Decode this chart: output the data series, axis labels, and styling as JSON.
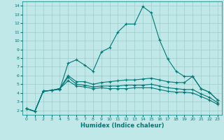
{
  "xlabel": "Humidex (Indice chaleur)",
  "bg_color": "#c0e8e8",
  "grid_color": "#a0cccc",
  "line_color": "#007878",
  "xlim": [
    -0.5,
    23.5
  ],
  "ylim": [
    1.5,
    14.5
  ],
  "xticks": [
    0,
    1,
    2,
    3,
    4,
    5,
    6,
    7,
    8,
    9,
    10,
    11,
    12,
    13,
    14,
    15,
    16,
    17,
    18,
    19,
    20,
    21,
    22,
    23
  ],
  "yticks": [
    2,
    3,
    4,
    5,
    6,
    7,
    8,
    9,
    10,
    11,
    12,
    13,
    14
  ],
  "lines": [
    [
      2.2,
      1.9,
      4.2,
      4.3,
      4.4,
      7.4,
      7.8,
      7.2,
      6.5,
      8.7,
      9.2,
      11.0,
      11.9,
      11.9,
      13.9,
      13.2,
      10.1,
      7.9,
      6.5,
      5.9,
      5.9,
      4.5,
      4.1,
      3.2
    ],
    [
      2.2,
      1.9,
      4.2,
      4.3,
      4.5,
      6.0,
      5.3,
      5.3,
      5.0,
      5.2,
      5.3,
      5.4,
      5.5,
      5.5,
      5.6,
      5.7,
      5.5,
      5.3,
      5.2,
      5.2,
      5.9,
      4.5,
      4.1,
      3.2
    ],
    [
      2.2,
      1.9,
      4.2,
      4.3,
      4.5,
      5.8,
      5.0,
      4.9,
      4.7,
      4.8,
      4.8,
      4.8,
      4.9,
      4.9,
      4.9,
      5.0,
      4.8,
      4.6,
      4.5,
      4.4,
      4.4,
      3.9,
      3.5,
      2.9
    ],
    [
      2.2,
      1.9,
      4.2,
      4.3,
      4.5,
      5.4,
      4.8,
      4.7,
      4.5,
      4.6,
      4.5,
      4.5,
      4.5,
      4.6,
      4.6,
      4.6,
      4.4,
      4.2,
      4.1,
      4.1,
      4.0,
      3.6,
      3.2,
      2.7
    ]
  ],
  "marker": "+",
  "markersize": 3,
  "markeredgewidth": 0.8,
  "linewidth": 0.8
}
